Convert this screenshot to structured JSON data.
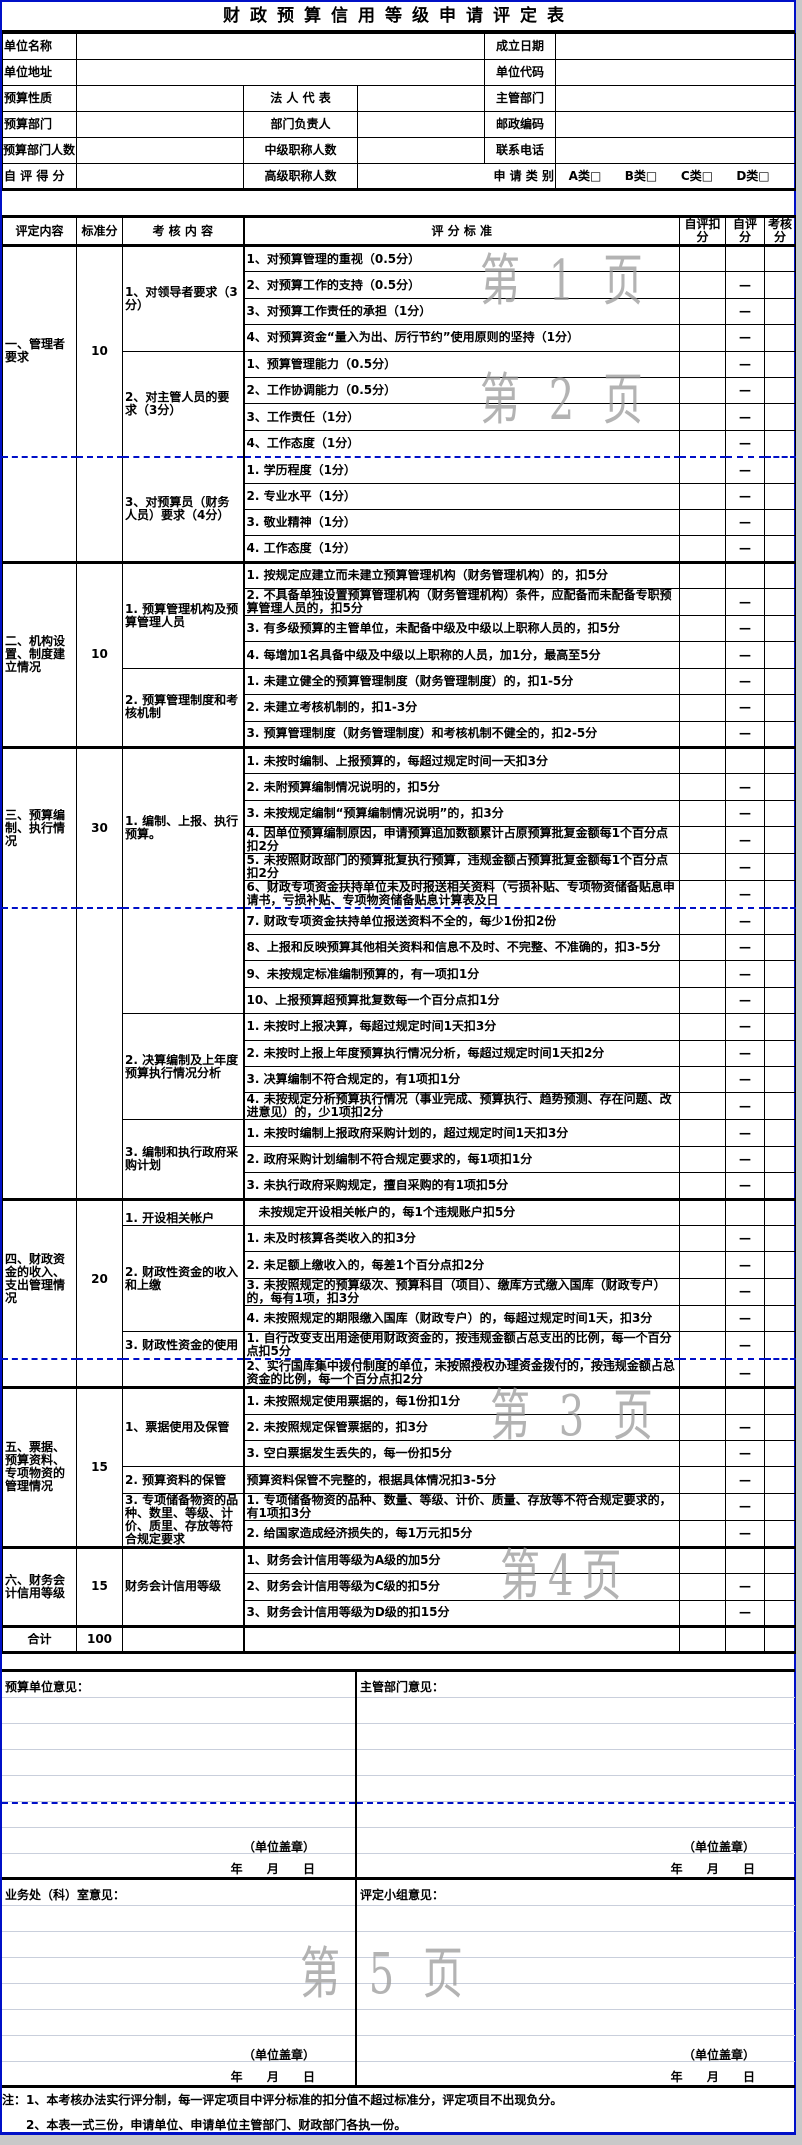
{
  "title": "财政预算信用等级申请评定表",
  "info": {
    "unit_name": "单位名称",
    "found_date": "成立日期",
    "unit_address": "单位地址",
    "unit_code": "单位代码",
    "budget_nature": "预算性质",
    "legal_rep": "法 人 代 表",
    "supervisor_dept": "主管部门",
    "budget_dept": "预算部门",
    "dept_head": "部门负责人",
    "postcode": "邮政编码",
    "budget_dept_staff": "预算部门人数",
    "mid_title_staff": "中级职称人数",
    "phone": "联系电话",
    "self_score": "自 评 得 分",
    "senior_title_staff": "高级职称人数",
    "apply_category": "申 请 类 别",
    "categories": [
      "A类□",
      "B类□",
      "C类□",
      "D类□"
    ]
  },
  "header": [
    "评定内容",
    "标准分",
    "考 核 内 容",
    "评 分 标 准",
    "自评扣分",
    "自评分",
    "考核分"
  ],
  "sections": [
    {
      "name": "一、管理者要求",
      "score": "10",
      "subs": [
        {
          "title": "1、对领导者要求（3分）",
          "items": [
            {
              "t": "1、对预算管理的重视（0.5分）",
              "m": ""
            },
            {
              "t": "2、对预算工作的支持（0.5分）",
              "m": "—"
            },
            {
              "t": "3、对预算工作责任的承担（1分）",
              "m": "—"
            },
            {
              "t": "4、对预算资金“量入为出、厉行节约”使用原则的坚持（1分）",
              "m": "—"
            }
          ]
        },
        {
          "title": "2、对主管人员的要求（3分）",
          "items": [
            {
              "t": "1、预算管理能力（0.5分）",
              "m": "—"
            },
            {
              "t": "2、工作协调能力（0.5分）",
              "m": "—"
            },
            {
              "t": "3、工作责任（1分）",
              "m": "—"
            },
            {
              "t": "4、工作态度（1分）",
              "m": "—"
            }
          ]
        },
        {
          "title": "3、对预算员（财务人员）要求（4分）",
          "items": [
            {
              "t": "1. 学历程度（1分）",
              "m": "—"
            },
            {
              "t": "2. 专业水平（1分）",
              "m": "—"
            },
            {
              "t": "3. 敬业精神（1分）",
              "m": "—"
            },
            {
              "t": "4. 工作态度（1分）",
              "m": "—"
            }
          ]
        }
      ]
    },
    {
      "name": "二、机构设置、制度建立情况",
      "score": "10",
      "subs": [
        {
          "title": "1. 预算管理机构及预算管理人员",
          "items": [
            {
              "t": "1. 按规定应建立而未建立预算管理机构（财务管理机构）的，扣5分",
              "m": ""
            },
            {
              "t": "2. 不具备单独设置预算管理机构（财务管理机构）条件，应配备而未配备专职预算管理人员的，扣5分",
              "m": "—"
            },
            {
              "t": "3. 有多级预算的主管单位，未配备中级及中级以上职称人员的，扣5分",
              "m": "—"
            },
            {
              "t": "4. 每增加1名具备中级及中级以上职称的人员，加1分，最高至5分",
              "m": "—"
            }
          ]
        },
        {
          "title": "2. 预算管理制度和考核机制",
          "items": [
            {
              "t": "1. 未建立健全的预算管理制度（财务管理制度）的，扣1-5分",
              "m": "—"
            },
            {
              "t": "2. 未建立考核机制的，扣1-3分",
              "m": "—"
            },
            {
              "t": "3. 预算管理制度（财务管理制度）和考核机制不健全的，扣2-5分",
              "m": "—"
            }
          ]
        }
      ]
    },
    {
      "name": "三、预算编制、执行情况",
      "score": "30",
      "subs": [
        {
          "title": "1. 编制、上报、执行预算。",
          "items": [
            {
              "t": "1. 未按时编制、上报预算的，每超过规定时间一天扣3分",
              "m": ""
            },
            {
              "t": "2. 未附预算编制情况说明的，扣5分",
              "m": "—"
            },
            {
              "t": "3. 未按规定编制“预算编制情况说明”的，扣3分",
              "m": "—"
            },
            {
              "t": "4. 因单位预算编制原因，申请预算追加数额累计占原预算批复金额每1个百分点扣2分",
              "m": "—"
            },
            {
              "t": "5. 未按照财政部门的预算批复执行预算，违规金额占预算批复金额每1个百分点扣2分",
              "m": "—"
            },
            {
              "t": "6、财政专项资金扶持单位未及时报送相关资料（亏损补贴、专项物资储备贴息申请书，亏损补贴、专项物资储备贴息计算表及日",
              "m": "—"
            },
            {
              "t": "7. 财政专项资金扶持单位报送资料不全的，每少1份扣2份",
              "m": "—"
            },
            {
              "t": "8、上报和反映预算其他相关资料和信息不及时、不完整、不准确的，扣3-5分",
              "m": "—"
            },
            {
              "t": "9、未按规定标准编制预算的，有一项扣1分",
              "m": "—"
            },
            {
              "t": "10、上报预算超预算批复数每一个百分点扣1分",
              "m": "—"
            }
          ]
        },
        {
          "title": "2. 决算编制及上年度预算执行情况分析",
          "items": [
            {
              "t": "1. 未按时上报决算，每超过规定时间1天扣3分",
              "m": "—"
            },
            {
              "t": "2. 未按时上报上年度预算执行情况分析，每超过规定时间1天扣2分",
              "m": "—"
            },
            {
              "t": "3. 决算编制不符合规定的，有1项扣1分",
              "m": "—"
            },
            {
              "t": "4. 未按规定分析预算执行情况（事业完成、预算执行、趋势预测、存在问题、改进意见）的，少1项扣2分",
              "m": "—"
            }
          ]
        },
        {
          "title": "3. 编制和执行政府采购计划",
          "items": [
            {
              "t": "1. 未按时编制上报政府采购计划的，超过规定时间1天扣3分",
              "m": "—"
            },
            {
              "t": "2. 政府采购计划编制不符合规定要求的，每1项扣1分",
              "m": "—"
            },
            {
              "t": "3. 未执行政府采购规定，擅自采购的有1项扣5分",
              "m": "—"
            }
          ]
        }
      ]
    },
    {
      "name": "四、财政资金的收入、支出管理情况",
      "score": "20",
      "subs": [
        {
          "title": "1. 开设相关帐户",
          "items": [
            {
              "t": "　未按规定开设相关帐户的，每1个违规账户扣5分",
              "m": ""
            }
          ]
        },
        {
          "title": "2. 财政性资金的收入和上缴",
          "items": [
            {
              "t": "1. 未及时核算各类收入的扣3分",
              "m": "—"
            },
            {
              "t": "2. 未足额上缴收入的，每差1个百分点扣2分",
              "m": "—"
            },
            {
              "t": "3. 未按照规定的预算级次、预算科目（项目）、缴库方式缴入国库（财政专户）的，每有1项，扣3分",
              "m": "—"
            },
            {
              "t": "4. 未按照规定的期限缴入国库（财政专户）的，每超过规定时间1天，扣3分",
              "m": "—"
            }
          ]
        },
        {
          "title": "3. 财政性资金的使用",
          "items": [
            {
              "t": "1. 自行改变支出用途使用财政资金的，按违规金额占总支出的比例，每一个百分点扣5分",
              "m": "—"
            },
            {
              "t": "2、实行国库集中拨付制度的单位，未按照授权办理资金拨付的，按违规金额占总资金的比例，每一个百分点扣2分",
              "m": "—"
            }
          ]
        }
      ]
    },
    {
      "name": "五、票据、预算资料、专项物资的管理情况",
      "score": "15",
      "subs": [
        {
          "title": "1、票据使用及保管",
          "items": [
            {
              "t": "1. 未按照规定使用票据的，每1份扣1分",
              "m": ""
            },
            {
              "t": "2. 未按照规定保管票据的，扣3分",
              "m": "—"
            },
            {
              "t": "3. 空白票据发生丢失的，每一份扣5分",
              "m": "—"
            }
          ]
        },
        {
          "title": "2. 预算资料的保管",
          "items": [
            {
              "t": "预算资料保管不完整的，根据具体情况扣3-5分",
              "m": "—"
            }
          ]
        },
        {
          "title": "3. 专项储备物资的品种、数里、等级、计价、质里、存放等符合规定要求",
          "items": [
            {
              "t": "1. 专项储备物资的品种、数量、等级、计价、质量、存放等不符合规定要求的，有1项扣3分",
              "m": "—"
            },
            {
              "t": "2. 给国家造成经济损失的，每1万元扣5分",
              "m": "—"
            }
          ]
        }
      ]
    },
    {
      "name": "六、财务会计信用等级",
      "score": "15",
      "subs": [
        {
          "title": "财务会计信用等级",
          "items": [
            {
              "t": "1、财务会计信用等级为A级的加5分",
              "m": ""
            },
            {
              "t": "2、财务会计信用等级为C级的扣5分",
              "m": "—"
            },
            {
              "t": "3、财务会计信用等级为D级的扣15分",
              "m": "—"
            }
          ]
        }
      ]
    }
  ],
  "total": {
    "label": "合计",
    "score": "100"
  },
  "opinions": {
    "budget_unit": "预算单位意见：",
    "supervisor": "主管部门意见：",
    "business_office": "业务处（科）室意见：",
    "review_group": "评定小组意见：",
    "seal": "（单位盖章）",
    "date": "年 月 日"
  },
  "notes": [
    "注：1、本考核办法实行评分制，每一评定项目中评分标准的扣分值不超过标准分，评定项目不出现负分。",
    "　　2、本表一式三份，申请单位、申请单位主管部门、财政部门各执一份。"
  ],
  "watermarks": [
    "第 1 页",
    "第 2 页",
    "第 3 页",
    "第4页",
    "第 5 页"
  ]
}
